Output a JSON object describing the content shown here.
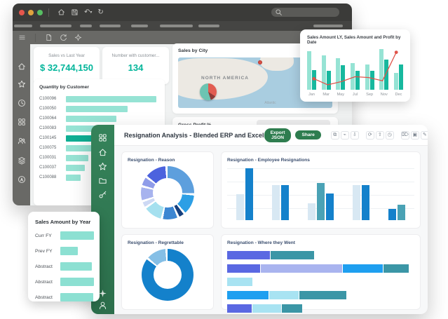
{
  "colors": {
    "teal": "#00b59a",
    "tealLight": "#96e3d4",
    "tealMid": "#17b89e",
    "tealDark": "#0fae93",
    "blue": "#1481cb",
    "pale": "#d8e8f3",
    "steel": "#4aa2b5",
    "royal": "#5a68e2",
    "peri": "#a9b4ef",
    "bright": "#1e9ff0",
    "cyan": "#a8e3f2",
    "seagreen": "#3b96a6",
    "red": "#e0534a",
    "green": "#2e7d4f",
    "yearBar": "#8ce0d2"
  },
  "back_window": {
    "kpis": [
      {
        "title": "Sales vs Last Year",
        "value": "$ 32,744,150"
      },
      {
        "title": "Number with customer...",
        "value": "134"
      }
    ],
    "map": {
      "title": "Sales by City",
      "region_label": "NORTH AMERICA",
      "ocean_label": "Atlantic"
    },
    "gross_profit_title": "Gross Profit %"
  },
  "front_window": {
    "title": "Resignation Analysis - Blended ERP and Excel",
    "export_button": "Export JSON",
    "share_button": "Share",
    "toolbar_icons": [
      {
        "name": "copy",
        "glyph": "⧉",
        "group": 0
      },
      {
        "name": "link",
        "glyph": "⌁",
        "group": 0
      },
      {
        "name": "download",
        "glyph": "⇩",
        "group": 0
      },
      {
        "name": "refresh",
        "glyph": "⟳",
        "group": 1
      },
      {
        "name": "upload",
        "glyph": "⇧",
        "group": 1
      },
      {
        "name": "history",
        "glyph": "◷",
        "group": 1
      },
      {
        "name": "delete",
        "glyph": "⌦",
        "group": 2
      },
      {
        "name": "export-frame",
        "glyph": "▣",
        "group": 2
      },
      {
        "name": "edit",
        "glyph": "✎",
        "group": 2
      },
      {
        "name": "more",
        "glyph": "⋯",
        "group": 2,
        "dim": true
      }
    ]
  },
  "chart_data": [
    {
      "id": "sales_ly_profit",
      "type": "bar+line",
      "title": "Sales Amount LY,  Sales Amount and Profit by Date",
      "categories": [
        "Jan",
        "Mar",
        "May",
        "Jul",
        "Sep",
        "Nov",
        "Dec"
      ],
      "series": [
        {
          "name": "Sales Amount LY",
          "color": "tealLight",
          "values": [
            95,
            85,
            78,
            66,
            62,
            100,
            42
          ]
        },
        {
          "name": "Sales Amount",
          "color": "tealMid",
          "values": [
            48,
            47,
            60,
            46,
            47,
            75,
            62
          ]
        }
      ],
      "line": {
        "name": "Profit",
        "color": "red",
        "values": [
          27,
          12,
          20,
          32,
          30,
          22,
          92
        ],
        "dots": [
          0,
          6
        ]
      },
      "ylim": [
        0,
        100
      ],
      "grid": false,
      "legend": "none"
    },
    {
      "id": "quantity_by_customer",
      "type": "hbar",
      "title": "Quantity by Customer",
      "categories": [
        "C100096",
        "C100050",
        "C100064",
        "C100083",
        "C100145",
        "C100075",
        "C100031",
        "C100037",
        "C100088"
      ],
      "values": [
        97,
        66,
        54,
        38,
        34,
        30,
        24,
        20,
        16
      ],
      "highlight_index": 4,
      "xlim": [
        0,
        100
      ]
    },
    {
      "id": "resignation_reason",
      "type": "donut",
      "title": "Resignation - Reason",
      "segments": [
        {
          "v": 26,
          "color": "#5d9fdd"
        },
        {
          "v": 12,
          "color": "#2d9fe5"
        },
        {
          "v": 3,
          "color": "#16407e"
        },
        {
          "v": 9,
          "color": "#3c86d2"
        },
        {
          "v": 11,
          "color": "#a5e0ef"
        },
        {
          "v": 3,
          "color": "#cdd9f4"
        },
        {
          "v": 8,
          "color": "#a7b3ee"
        },
        {
          "v": 5,
          "color": "#8f9ce9"
        },
        {
          "v": 13,
          "color": "#4c63de"
        }
      ]
    },
    {
      "id": "employee_resignations",
      "type": "grouped-bar",
      "title": "Resignation - Employee Resignations",
      "groups": [
        [
          {
            "c": "pale",
            "v": 50
          },
          {
            "c": "blue",
            "v": 100
          }
        ],
        [
          {
            "c": "pale",
            "v": 67
          },
          {
            "c": "blue",
            "v": 67
          }
        ],
        [
          {
            "c": "pale",
            "v": 33
          },
          {
            "c": "steel",
            "v": 72
          },
          {
            "c": "blue",
            "v": 51
          }
        ],
        [
          {
            "c": "pale",
            "v": 67
          },
          {
            "c": "blue",
            "v": 68
          }
        ],
        [
          {
            "c": "blue",
            "v": 21
          },
          {
            "c": "steel",
            "v": 30
          }
        ]
      ],
      "ylim": [
        0,
        100
      ],
      "grid": true
    },
    {
      "id": "resignation_regrettable",
      "type": "donut",
      "title": "Resignation - Regrettable",
      "segments": [
        {
          "v": 85,
          "color": "#1481cb"
        },
        {
          "v": 12,
          "color": "#85bfe6"
        }
      ]
    },
    {
      "id": "where_they_went",
      "type": "stacked-hbar",
      "title": "Resignation - Where they Went",
      "rows": [
        [
          {
            "c": "royal",
            "v": 23
          },
          {
            "c": "seagreen",
            "v": 23
          }
        ],
        [
          {
            "c": "royal",
            "v": 17.5
          },
          {
            "c": "peri",
            "v": 43.5
          },
          {
            "c": "bright",
            "v": 21.5
          },
          {
            "c": "seagreen",
            "v": 13.5
          }
        ],
        [
          {
            "c": "cyan",
            "v": 13.5
          }
        ],
        [
          {
            "c": "bright",
            "v": 22
          },
          {
            "c": "cyan",
            "v": 16
          },
          {
            "c": "seagreen",
            "v": 25
          }
        ],
        [
          {
            "c": "royal",
            "v": 13
          },
          {
            "c": "cyan",
            "v": 15.5
          },
          {
            "c": "seagreen",
            "v": 11
          }
        ]
      ],
      "xlim": [
        0,
        100
      ]
    },
    {
      "id": "sales_amount_by_year",
      "type": "hbar",
      "title": "Sales Amount by Year",
      "categories": [
        "Curr FY",
        "Prev FY",
        "Abstract",
        "Abstract",
        "Abstract"
      ],
      "values": [
        100,
        52,
        93,
        100,
        97
      ],
      "xlim": [
        0,
        100
      ]
    }
  ]
}
